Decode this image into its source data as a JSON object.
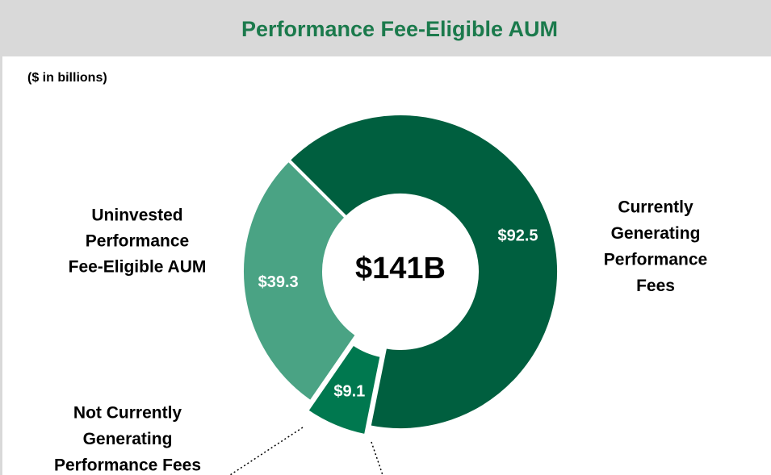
{
  "chart_data": {
    "type": "donut",
    "title": "Performance Fee-Eligible AUM",
    "subtitle": "($ in billions)",
    "center_label": "$141B",
    "categories": [
      [
        "Currently",
        "Generating",
        "Performance",
        "Fees"
      ],
      [
        "Not Currently",
        "Generating",
        "Performance Fees"
      ],
      [
        "Uninvested",
        "Performance",
        "Fee-Eligible AUM"
      ]
    ],
    "values": [
      92.5,
      9.1,
      39.3
    ],
    "value_labels": [
      "$92.5",
      "$9.1",
      "$39.3"
    ],
    "colors": [
      "#005f3f",
      "#00784f",
      "#4aa384"
    ],
    "start_angle": -45,
    "exploded": [
      false,
      true,
      false
    ]
  }
}
